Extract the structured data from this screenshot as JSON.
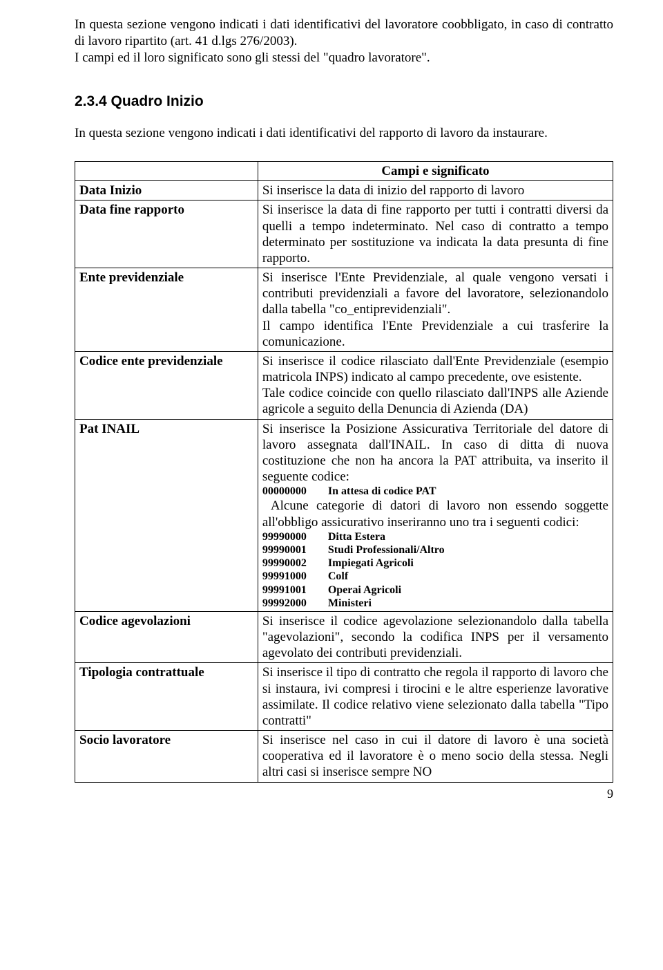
{
  "intro_paragraph": "In questa sezione vengono indicati i dati identificativi del lavoratore coobbligato, in caso di contratto di lavoro ripartito (art. 41 d.lgs 276/2003).",
  "intro_paragraph_2": "I campi ed il loro significato sono gli stessi del \"quadro lavoratore\".",
  "section_heading": "2.3.4 Quadro Inizio",
  "section_intro": "In questa sezione vengono indicati i dati identificativi del rapporto di lavoro da instaurare.",
  "table": {
    "header": "Campi e significato",
    "rows": [
      {
        "label": "Data Inizio",
        "desc": "Si inserisce la data di inizio del rapporto di lavoro"
      },
      {
        "label": "Data fine rapporto",
        "desc": "Si inserisce la data di fine rapporto per tutti i contratti diversi da quelli a tempo indeterminato. Nel caso di contratto a tempo determinato per sostituzione va indicata la data presunta di fine rapporto."
      },
      {
        "label": "Ente previdenziale",
        "desc": "Si inserisce l'Ente Previdenziale, al quale vengono versati i contributi previdenziali a favore del lavoratore, selezionandolo dalla tabella \"co_entiprevidenziali\".\nIl campo identifica l'Ente Previdenziale a cui trasferire la comunicazione."
      },
      {
        "label": "Codice ente previdenziale",
        "desc": "Si inserisce il codice rilasciato dall'Ente Previdenziale (esempio matricola INPS) indicato al campo precedente, ove esistente.\nTale codice coincide con quello rilasciato dall'INPS alle Aziende agricole a seguito della Denuncia di Azienda (DA)"
      },
      {
        "label": "Pat INAIL",
        "desc_part1": "Si inserisce la Posizione Assicurativa Territoriale del datore di lavoro assegnata dall'INAIL. In caso di ditta di nuova costituzione che non ha ancora la PAT attribuita, va inserito il seguente codice:",
        "codes_1": [
          {
            "k": "00000000",
            "v": "In attesa di codice PAT"
          }
        ],
        "desc_part2": "Alcune categorie di datori di lavoro non essendo soggette all'obbligo assicurativo inseriranno uno tra i seguenti codici:",
        "codes_2": [
          {
            "k": "99990000",
            "v": "Ditta Estera"
          },
          {
            "k": "99990001",
            "v": "Studi Professionali/Altro"
          },
          {
            "k": "99990002",
            "v": "Impiegati Agricoli"
          },
          {
            "k": "99991000",
            "v": "Colf"
          },
          {
            "k": "99991001",
            "v": "Operai Agricoli"
          },
          {
            "k": "99992000",
            "v": "Ministeri"
          }
        ]
      },
      {
        "label": "Codice agevolazioni",
        "desc": "Si inserisce il codice agevolazione selezionandolo dalla tabella \"agevolazioni\", secondo la codifica INPS per il versamento agevolato dei contributi previdenziali."
      },
      {
        "label": "Tipologia contrattuale",
        "desc": "Si inserisce il tipo di contratto che regola il rapporto di lavoro che si instaura, ivi compresi i tirocini e le altre esperienze lavorative assimilate. Il codice relativo viene selezionato dalla tabella \"Tipo contratti\""
      },
      {
        "label": "Socio lavoratore",
        "desc": "Si inserisce nel caso in cui il datore di lavoro è una società cooperativa ed il lavoratore è o meno socio della stessa. Negli altri casi si inserisce sempre NO"
      }
    ]
  },
  "page_number": "9"
}
